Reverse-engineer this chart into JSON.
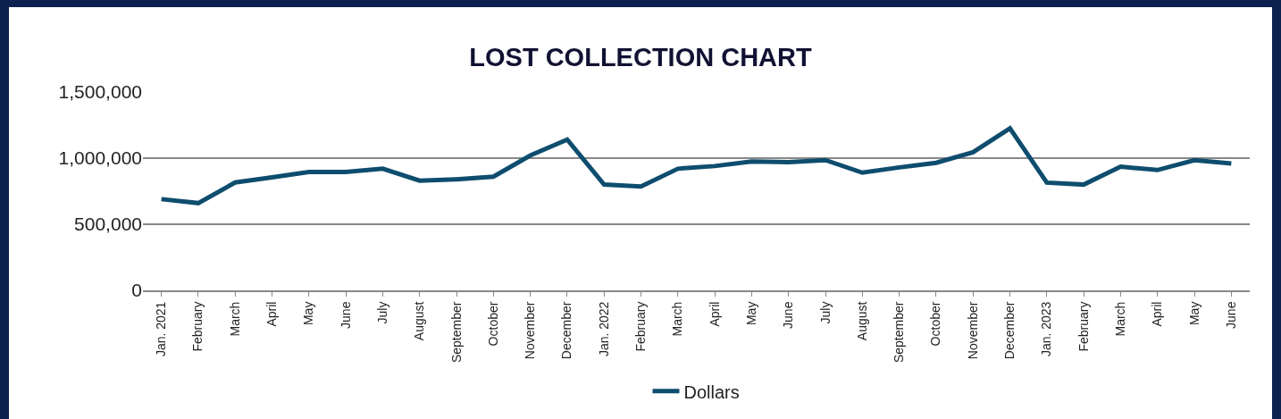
{
  "chart_data": {
    "type": "line",
    "title": "LOST COLLECTION CHART",
    "categories": [
      "Jan. 2021",
      "February",
      "March",
      "April",
      "May",
      "June",
      "July",
      "August",
      "September",
      "October",
      "November",
      "December",
      "Jan. 2022",
      "February",
      "March",
      "April",
      "May",
      "June",
      "July",
      "August",
      "September",
      "October",
      "November",
      "December",
      "Jan. 2023",
      "February",
      "March",
      "April",
      "May",
      "June"
    ],
    "series": [
      {
        "name": "Dollars",
        "color": "#0e4d6e",
        "values": [
          690000,
          660000,
          816000,
          855000,
          895000,
          895000,
          920000,
          830000,
          840000,
          860000,
          1020000,
          1140000,
          800000,
          785000,
          920000,
          940000,
          975000,
          970000,
          985000,
          890000,
          930000,
          965000,
          1045000,
          1225000,
          815000,
          800000,
          935000,
          910000,
          985000,
          960000
        ]
      }
    ],
    "ylim": [
      0,
      1500000
    ],
    "yticks": [
      {
        "value": 0,
        "label": "0"
      },
      {
        "value": 500000,
        "label": "500,000"
      },
      {
        "value": 1000000,
        "label": "1,000,000"
      },
      {
        "value": 1500000,
        "label": "1,500,000"
      }
    ],
    "grid": "y",
    "legend": "bottom",
    "marker": "none",
    "line_style": "solid"
  }
}
